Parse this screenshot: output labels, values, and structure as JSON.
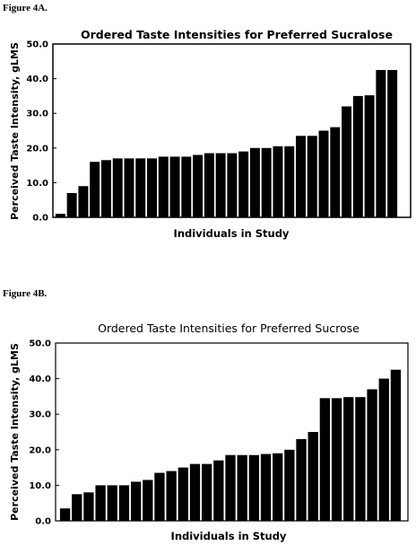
{
  "figures": [
    {
      "label": "Figure 4A."
    },
    {
      "label": "Figure 4B."
    }
  ],
  "chart_data": [
    {
      "type": "bar",
      "title": "Ordered Taste Intensities for Preferred Sucralose",
      "xlabel": "Individuals in Study",
      "ylabel": "Perceived Taste Intensity, gLMS",
      "ylim": [
        0,
        50
      ],
      "yticks": [
        "0.0",
        "10.0",
        "20.0",
        "30.0",
        "40.0",
        "50.0"
      ],
      "grid": false,
      "values": [
        1,
        7,
        9,
        16,
        16.5,
        17,
        17,
        17,
        17,
        17.5,
        17.5,
        17.5,
        18,
        18.5,
        18.5,
        18.5,
        19,
        20,
        20,
        20.5,
        20.5,
        23.5,
        23.5,
        25,
        26,
        32,
        35,
        35.2,
        42.5,
        42.5
      ]
    },
    {
      "type": "bar",
      "title": "Ordered Taste Intensities for Preferred Sucrose",
      "xlabel": "Individuals in Study",
      "ylabel": "Perceived Taste Intensity, gLMS",
      "ylim": [
        0,
        50
      ],
      "yticks": [
        "0.0",
        "10.0",
        "20.0",
        "30.0",
        "40.0",
        "50.0"
      ],
      "grid": false,
      "values": [
        3.5,
        7.5,
        8,
        10,
        10,
        10,
        11,
        11.5,
        13.5,
        14,
        15,
        16,
        16,
        17,
        18.5,
        18.5,
        18.5,
        18.8,
        19,
        20,
        23,
        25,
        34.5,
        34.5,
        34.8,
        34.8,
        37,
        40,
        42.5
      ]
    }
  ]
}
